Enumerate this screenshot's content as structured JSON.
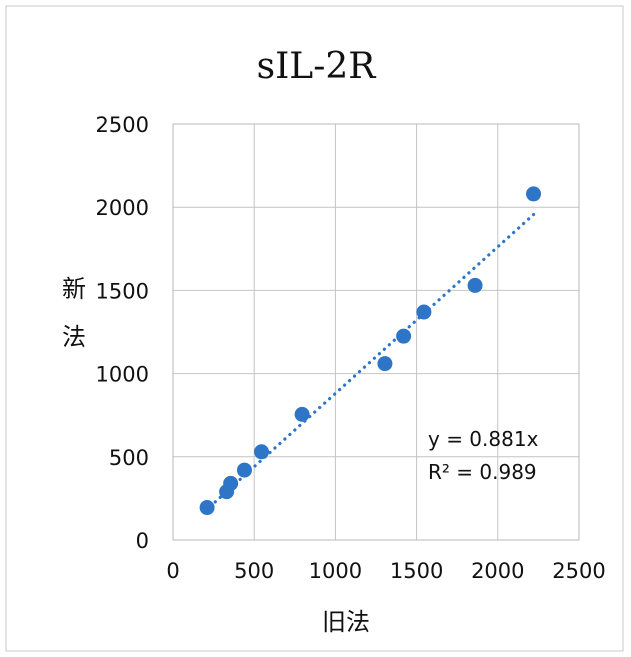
{
  "chart_data": {
    "type": "scatter",
    "title": "sIL-2R",
    "xlabel": "旧法",
    "ylabel": "新法",
    "xlim": [
      0,
      2500
    ],
    "ylim": [
      0,
      2500
    ],
    "xticks": [
      0,
      500,
      1000,
      1500,
      2000,
      2500
    ],
    "yticks": [
      0,
      500,
      1000,
      1500,
      2000,
      2500
    ],
    "grid": true,
    "marker_color": "#2E75C8",
    "trendline_color": "#2E75C8",
    "points": [
      {
        "x": 210,
        "y": 195
      },
      {
        "x": 330,
        "y": 290
      },
      {
        "x": 355,
        "y": 340
      },
      {
        "x": 440,
        "y": 420
      },
      {
        "x": 545,
        "y": 530
      },
      {
        "x": 795,
        "y": 755
      },
      {
        "x": 1305,
        "y": 1060
      },
      {
        "x": 1420,
        "y": 1225
      },
      {
        "x": 1545,
        "y": 1370
      },
      {
        "x": 1860,
        "y": 1530
      },
      {
        "x": 2220,
        "y": 2080
      }
    ],
    "trendline": {
      "style": "dotted",
      "slope": 0.881,
      "intercept": 0,
      "x_range": [
        260,
        2220
      ]
    },
    "equation_text": "y = 0.881x",
    "r2_text": "R² = 0.989"
  }
}
